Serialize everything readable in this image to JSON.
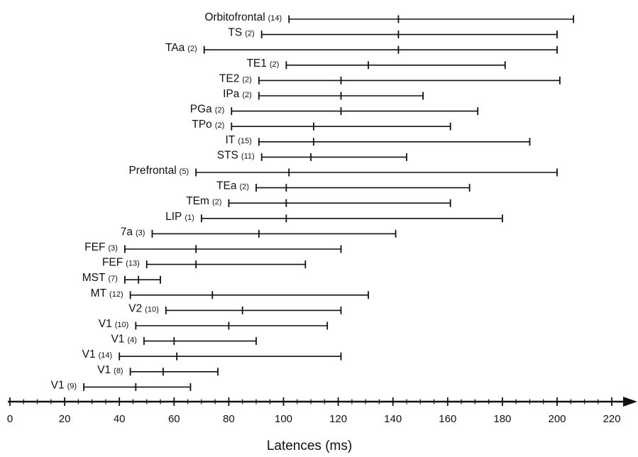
{
  "chart_data": {
    "type": "range",
    "title": "",
    "xlabel": "Latences (ms)",
    "ylabel": "",
    "xlim": [
      0,
      230
    ],
    "x_ticks": [
      0,
      20,
      40,
      60,
      80,
      100,
      120,
      140,
      160,
      180,
      200,
      220
    ],
    "tick_labels": [
      "0",
      "20",
      "40",
      "60",
      "80",
      "100",
      "120",
      "140",
      "160",
      "180",
      "200",
      "220"
    ],
    "grid": false,
    "legend": "none",
    "colors": {
      "line": "#111111",
      "axis": "#111111"
    },
    "rows": [
      {
        "area": "Orbitofrontal",
        "n": "(14)",
        "min": 102,
        "mid": 142,
        "max": 206
      },
      {
        "area": "TS",
        "n": "(2)",
        "min": 92,
        "mid": 142,
        "max": 200
      },
      {
        "area": "TAa",
        "n": "(2)",
        "min": 71,
        "mid": 142,
        "max": 200
      },
      {
        "area": "TE1",
        "n": "(2)",
        "min": 101,
        "mid": 131,
        "max": 181
      },
      {
        "area": "TE2",
        "n": "(2)",
        "min": 91,
        "mid": 121,
        "max": 201
      },
      {
        "area": "IPa",
        "n": "(2)",
        "min": 91,
        "mid": 121,
        "max": 151
      },
      {
        "area": "PGa",
        "n": "(2)",
        "min": 81,
        "mid": 121,
        "max": 171
      },
      {
        "area": "TPo",
        "n": "(2)",
        "min": 81,
        "mid": 111,
        "max": 161
      },
      {
        "area": "IT",
        "n": "(15)",
        "min": 91,
        "mid": 111,
        "max": 190
      },
      {
        "area": "STS",
        "n": "(11)",
        "min": 92,
        "mid": 110,
        "max": 145
      },
      {
        "area": "Prefrontal",
        "n": "(5)",
        "min": 68,
        "mid": 102,
        "max": 200
      },
      {
        "area": "TEa",
        "n": "(2)",
        "min": 90,
        "mid": 101,
        "max": 168
      },
      {
        "area": "TEm",
        "n": "(2)",
        "min": 80,
        "mid": 101,
        "max": 161
      },
      {
        "area": "LIP",
        "n": "(1)",
        "min": 70,
        "mid": 101,
        "max": 180
      },
      {
        "area": "7a",
        "n": "(3)",
        "min": 52,
        "mid": 91,
        "max": 141
      },
      {
        "area": "FEF",
        "n": "(3)",
        "min": 42,
        "mid": 68,
        "max": 121
      },
      {
        "area": "FEF",
        "n": "(13)",
        "min": 50,
        "mid": 68,
        "max": 108
      },
      {
        "area": "MST",
        "n": "(7)",
        "min": 42,
        "mid": 47,
        "max": 55
      },
      {
        "area": "MT",
        "n": "(12)",
        "min": 44,
        "mid": 74,
        "max": 131
      },
      {
        "area": "V2",
        "n": "(10)",
        "min": 57,
        "mid": 85,
        "max": 121
      },
      {
        "area": "V1",
        "n": "(10)",
        "min": 46,
        "mid": 80,
        "max": 116
      },
      {
        "area": "V1",
        "n": "(4)",
        "min": 49,
        "mid": 60,
        "max": 90
      },
      {
        "area": "V1",
        "n": "(14)",
        "min": 40,
        "mid": 61,
        "max": 121
      },
      {
        "area": "V1",
        "n": "(8)",
        "min": 44,
        "mid": 56,
        "max": 76
      },
      {
        "area": "V1",
        "n": "(9)",
        "min": 27,
        "mid": 46,
        "max": 66
      }
    ]
  }
}
